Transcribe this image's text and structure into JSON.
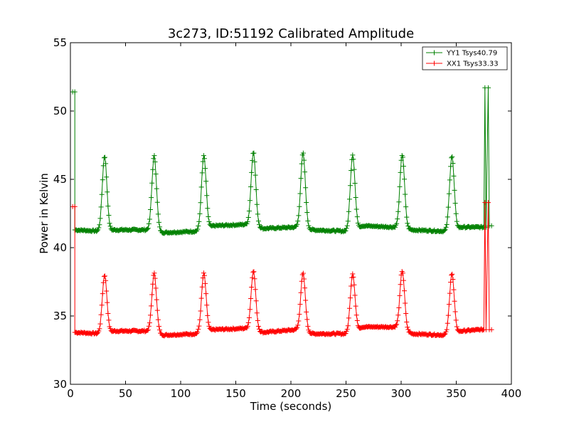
{
  "chart_data": {
    "type": "line",
    "title": "3c273, ID:51192 Calibrated Amplitude",
    "xlabel": "Time (seconds)",
    "ylabel": "Power in Kelvin",
    "xlim": [
      0,
      400
    ],
    "ylim": [
      30,
      55
    ],
    "xticks": [
      "0",
      "50",
      "100",
      "150",
      "200",
      "250",
      "300",
      "350",
      "400"
    ],
    "yticks": [
      "30",
      "35",
      "40",
      "45",
      "50",
      "55"
    ],
    "grid": false,
    "legend_position": "top-right",
    "marker": "plus",
    "series": [
      {
        "name": "YY1 Tsys40.79",
        "color": "#008000",
        "baseline": [
          [
            4,
            41.3
          ],
          [
            28,
            41.2
          ],
          [
            40,
            41.3
          ],
          [
            70,
            41.3
          ],
          [
            85,
            41.1
          ],
          [
            115,
            41.2
          ],
          [
            130,
            41.6
          ],
          [
            160,
            41.7
          ],
          [
            175,
            41.4
          ],
          [
            205,
            41.5
          ],
          [
            220,
            41.3
          ],
          [
            250,
            41.2
          ],
          [
            265,
            41.6
          ],
          [
            295,
            41.5
          ],
          [
            310,
            41.3
          ],
          [
            340,
            41.2
          ],
          [
            355,
            41.5
          ],
          [
            372,
            41.5
          ]
        ],
        "peaks": [
          [
            31,
            46.7
          ],
          [
            76,
            46.7
          ],
          [
            121,
            46.7
          ],
          [
            166,
            47.0
          ],
          [
            211,
            46.9
          ],
          [
            256,
            46.8
          ],
          [
            301,
            46.8
          ],
          [
            346,
            46.7
          ]
        ],
        "start": [
          [
            2,
            51.4
          ],
          [
            4,
            51.4
          ],
          [
            4,
            41.3
          ]
        ],
        "end": [
          [
            375,
            41.5
          ],
          [
            376,
            51.7
          ],
          [
            377,
            41.5
          ],
          [
            379,
            51.7
          ],
          [
            380,
            41.6
          ],
          [
            382,
            41.6
          ]
        ]
      },
      {
        "name": "XX1 Tsys33.33",
        "color": "#ff0000",
        "baseline": [
          [
            4,
            33.8
          ],
          [
            28,
            33.7
          ],
          [
            40,
            33.9
          ],
          [
            70,
            33.9
          ],
          [
            85,
            33.6
          ],
          [
            115,
            33.7
          ],
          [
            130,
            34.0
          ],
          [
            160,
            34.1
          ],
          [
            175,
            33.8
          ],
          [
            205,
            34.0
          ],
          [
            220,
            33.7
          ],
          [
            250,
            33.7
          ],
          [
            265,
            34.2
          ],
          [
            295,
            34.2
          ],
          [
            310,
            33.7
          ],
          [
            340,
            33.6
          ],
          [
            355,
            33.9
          ],
          [
            372,
            34.0
          ]
        ],
        "peaks": [
          [
            31,
            38.0
          ],
          [
            76,
            38.1
          ],
          [
            121,
            38.1
          ],
          [
            166,
            38.3
          ],
          [
            211,
            38.1
          ],
          [
            256,
            38.1
          ],
          [
            301,
            38.3
          ],
          [
            346,
            38.1
          ]
        ],
        "start": [
          [
            2,
            43.0
          ],
          [
            4,
            43.0
          ],
          [
            4,
            33.8
          ]
        ],
        "end": [
          [
            375,
            34.0
          ],
          [
            376,
            43.3
          ],
          [
            377,
            34.0
          ],
          [
            379,
            43.3
          ],
          [
            380,
            34.0
          ],
          [
            382,
            34.0
          ]
        ]
      }
    ]
  }
}
